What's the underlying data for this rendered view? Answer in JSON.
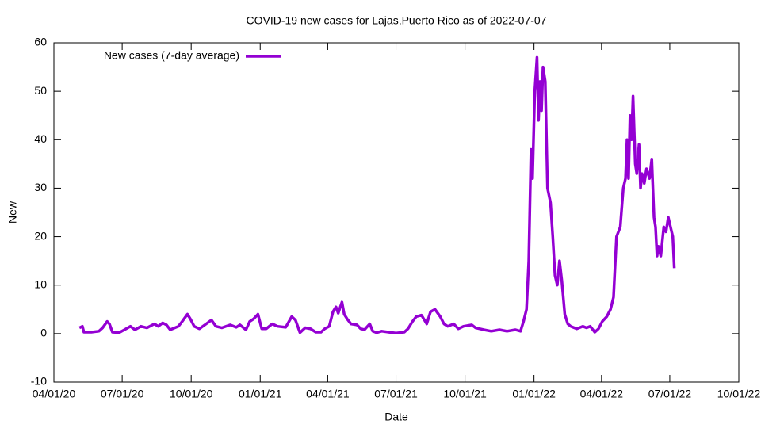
{
  "chart_data": {
    "type": "line",
    "title": "COVID-19 new cases for Lajas,Puerto Rico as of 2022-07-07",
    "x_label": "Date",
    "y_label": "New",
    "legend": "top-left",
    "x": [
      "2020-05-05",
      "2020-05-09",
      "2020-05-11",
      "2020-05-21",
      "2020-05-31",
      "2020-06-05",
      "2020-06-11",
      "2020-06-14",
      "2020-06-18",
      "2020-06-27",
      "2020-07-04",
      "2020-07-12",
      "2020-07-18",
      "2020-07-26",
      "2020-08-03",
      "2020-08-13",
      "2020-08-18",
      "2020-08-24",
      "2020-08-29",
      "2020-09-03",
      "2020-09-14",
      "2020-09-19",
      "2020-09-26",
      "2020-09-30",
      "2020-10-05",
      "2020-10-12",
      "2020-10-21",
      "2020-10-28",
      "2020-11-03",
      "2020-11-11",
      "2020-11-22",
      "2020-11-30",
      "2020-12-05",
      "2020-12-13",
      "2020-12-18",
      "2020-12-23",
      "2020-12-29",
      "2021-01-03",
      "2021-01-09",
      "2021-01-17",
      "2021-01-24",
      "2021-02-04",
      "2021-02-12",
      "2021-02-17",
      "2021-02-23",
      "2021-03-02",
      "2021-03-09",
      "2021-03-16",
      "2021-03-23",
      "2021-03-28",
      "2021-04-03",
      "2021-04-08",
      "2021-04-12",
      "2021-04-15",
      "2021-04-20",
      "2021-04-23",
      "2021-04-27",
      "2021-05-02",
      "2021-05-10",
      "2021-05-15",
      "2021-05-20",
      "2021-05-27",
      "2021-05-31",
      "2021-06-05",
      "2021-06-12",
      "2021-06-21",
      "2021-07-01",
      "2021-07-12",
      "2021-07-17",
      "2021-07-23",
      "2021-07-28",
      "2021-08-04",
      "2021-08-11",
      "2021-08-16",
      "2021-08-22",
      "2021-08-29",
      "2021-09-03",
      "2021-09-08",
      "2021-09-16",
      "2021-09-22",
      "2021-09-29",
      "2021-10-10",
      "2021-10-15",
      "2021-10-26",
      "2021-11-05",
      "2021-11-16",
      "2021-11-26",
      "2021-12-07",
      "2021-12-14",
      "2021-12-18",
      "2021-12-22",
      "2021-12-25",
      "2021-12-28",
      "2021-12-30",
      "2022-01-02",
      "2022-01-05",
      "2022-01-07",
      "2022-01-09",
      "2022-01-11",
      "2022-01-13",
      "2022-01-16",
      "2022-01-19",
      "2022-01-23",
      "2022-01-26",
      "2022-01-29",
      "2022-02-01",
      "2022-02-04",
      "2022-02-07",
      "2022-02-11",
      "2022-02-15",
      "2022-02-19",
      "2022-02-27",
      "2022-03-07",
      "2022-03-12",
      "2022-03-17",
      "2022-03-23",
      "2022-03-28",
      "2022-04-02",
      "2022-04-08",
      "2022-04-13",
      "2022-04-17",
      "2022-04-21",
      "2022-04-26",
      "2022-04-30",
      "2022-05-03",
      "2022-05-05",
      "2022-05-07",
      "2022-05-09",
      "2022-05-11",
      "2022-05-13",
      "2022-05-16",
      "2022-05-18",
      "2022-05-21",
      "2022-05-23",
      "2022-05-25",
      "2022-05-28",
      "2022-05-31",
      "2022-06-04",
      "2022-06-07",
      "2022-06-10",
      "2022-06-12",
      "2022-06-14",
      "2022-06-16",
      "2022-06-19",
      "2022-06-23",
      "2022-06-26",
      "2022-06-29",
      "2022-07-02",
      "2022-07-05",
      "2022-07-07"
    ],
    "series": [
      {
        "name": "New cases (7-day average)",
        "color": "#9400d3",
        "values": [
          1.2,
          1.5,
          0.3,
          0.3,
          0.5,
          1.2,
          2.5,
          2.0,
          0.3,
          0.2,
          0.8,
          1.5,
          0.8,
          1.5,
          1.2,
          2.0,
          1.5,
          2.2,
          1.8,
          0.8,
          1.5,
          2.5,
          4.0,
          3.0,
          1.5,
          1.0,
          2.0,
          2.8,
          1.5,
          1.2,
          1.8,
          1.3,
          1.8,
          0.8,
          2.5,
          3.0,
          4.0,
          1.0,
          1.0,
          2.0,
          1.5,
          1.3,
          3.5,
          2.8,
          0.2,
          1.2,
          1.0,
          0.3,
          0.3,
          1.0,
          1.5,
          4.5,
          5.5,
          4.2,
          6.5,
          4.0,
          3.0,
          2.0,
          1.8,
          1.0,
          0.8,
          2.0,
          0.5,
          0.2,
          0.5,
          0.3,
          0.1,
          0.3,
          1.0,
          2.5,
          3.5,
          3.8,
          2.0,
          4.5,
          5.0,
          3.5,
          2.0,
          1.5,
          2.0,
          1.0,
          1.5,
          1.8,
          1.2,
          0.8,
          0.5,
          0.8,
          0.5,
          0.8,
          0.5,
          2.5,
          5.0,
          15,
          38,
          32,
          50,
          57,
          44,
          52,
          46,
          55,
          52,
          30,
          27,
          20,
          12,
          10,
          15,
          11,
          4,
          2,
          1.5,
          1.0,
          1.5,
          1.2,
          1.5,
          0.3,
          1.0,
          2.5,
          3.5,
          5.0,
          7.5,
          20,
          22,
          30,
          32,
          40,
          32,
          45,
          40,
          49,
          35,
          33,
          39,
          30,
          33,
          31,
          34,
          32,
          36,
          24,
          22,
          16,
          18,
          16,
          22,
          21,
          24,
          22,
          20,
          13.5
        ]
      }
    ],
    "xlim": [
      "2020-04-01",
      "2022-10-01"
    ],
    "xticks": [
      {
        "value": "2020-04-01",
        "label": "04/01/20"
      },
      {
        "value": "2020-07-01",
        "label": "07/01/20"
      },
      {
        "value": "2020-10-01",
        "label": "10/01/20"
      },
      {
        "value": "2021-01-01",
        "label": "01/01/21"
      },
      {
        "value": "2021-04-01",
        "label": "04/01/21"
      },
      {
        "value": "2021-07-01",
        "label": "07/01/21"
      },
      {
        "value": "2021-10-01",
        "label": "10/01/21"
      },
      {
        "value": "2022-01-01",
        "label": "01/01/22"
      },
      {
        "value": "2022-04-01",
        "label": "04/01/22"
      },
      {
        "value": "2022-07-01",
        "label": "07/01/22"
      },
      {
        "value": "2022-10-01",
        "label": "10/01/22"
      }
    ],
    "ylim": [
      -10,
      60
    ],
    "yticks": [
      -10,
      0,
      10,
      20,
      30,
      40,
      50,
      60
    ],
    "grid": false
  }
}
